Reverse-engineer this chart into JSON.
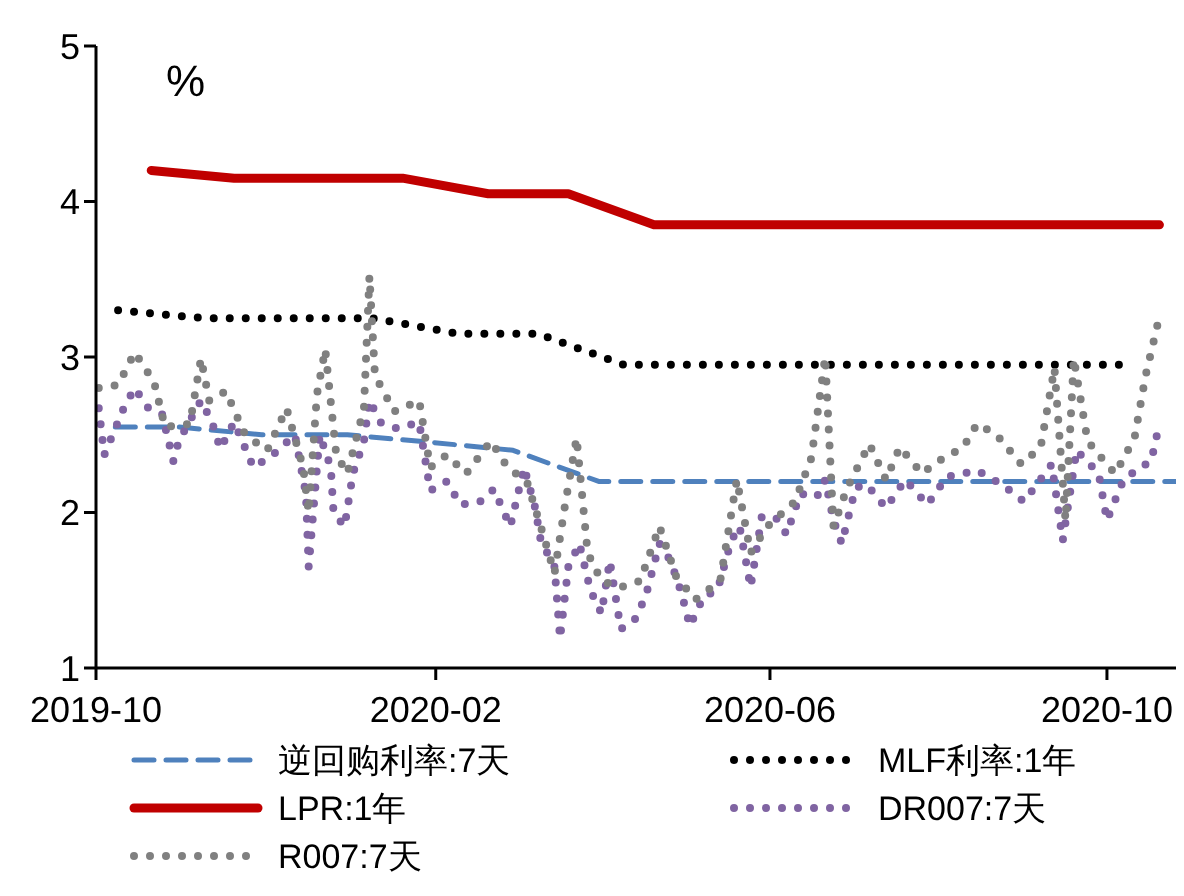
{
  "chart_data": {
    "type": "line",
    "ylabel": "%",
    "xlim": [
      "2019-10-01",
      "2020-10-26"
    ],
    "xticks": [
      "2019-10",
      "2020-02",
      "2020-06",
      "2020-10"
    ],
    "ylim": [
      1,
      5
    ],
    "yticks": [
      1,
      2,
      3,
      4,
      5
    ],
    "legend": "bottom",
    "marker": "none",
    "series": [
      {
        "name": "逆回购利率:7天",
        "color": "#4f81bd",
        "line_style": "dashed",
        "x": [
          "2019-10-08",
          "2019-10-31",
          "2019-11-30",
          "2019-12-31",
          "2020-01-31",
          "2020-02-29",
          "2020-03-31",
          "2020-04-30",
          "2020-05-31",
          "2020-06-30",
          "2020-07-31",
          "2020-08-31",
          "2020-09-30",
          "2020-10-26"
        ],
        "values": [
          2.55,
          2.55,
          2.5,
          2.5,
          2.45,
          2.4,
          2.2,
          2.2,
          2.2,
          2.2,
          2.2,
          2.2,
          2.2,
          2.2
        ]
      },
      {
        "name": "MLF利率:1年",
        "color": "#000000",
        "line_style": "dotted",
        "x": [
          "2019-10-09",
          "2019-11-09",
          "2019-12-09",
          "2020-01-09",
          "2020-02-09",
          "2020-03-09",
          "2020-04-09",
          "2020-05-09",
          "2020-06-09",
          "2020-07-09",
          "2020-08-09",
          "2020-09-09",
          "2020-10-09"
        ],
        "values": [
          3.3,
          3.25,
          3.25,
          3.25,
          3.15,
          3.15,
          2.95,
          2.95,
          2.95,
          2.95,
          2.95,
          2.95,
          2.95
        ]
      },
      {
        "name": "LPR:1年",
        "color": "#c00000",
        "line_style": "solid",
        "x": [
          "2019-10-21",
          "2019-11-20",
          "2019-12-20",
          "2020-01-20",
          "2020-02-20",
          "2020-03-20",
          "2020-04-20",
          "2020-05-20",
          "2020-06-20",
          "2020-07-20",
          "2020-08-20",
          "2020-09-20",
          "2020-10-20"
        ],
        "values": [
          4.2,
          4.15,
          4.15,
          4.15,
          4.05,
          4.05,
          3.85,
          3.85,
          3.85,
          3.85,
          3.85,
          3.85,
          3.85
        ]
      },
      {
        "name": "DR007:7天",
        "color": "#8064a2",
        "line_style": "dotted",
        "x": [
          "2019-10-02",
          "2019-10-04",
          "2019-10-11",
          "2019-10-15",
          "2019-10-20",
          "2019-10-25",
          "2019-10-29",
          "2019-10-31",
          "2019-11-08",
          "2019-11-12",
          "2019-11-15",
          "2019-11-20",
          "2019-11-27",
          "2019-12-04",
          "2019-12-12",
          "2019-12-16",
          "2019-12-17",
          "2019-12-21",
          "2019-12-25",
          "2019-12-26",
          "2019-12-30",
          "2020-01-02",
          "2020-01-06",
          "2020-01-08",
          "2020-01-12",
          "2020-01-18",
          "2020-01-26",
          "2020-01-30",
          "2020-02-05",
          "2020-02-10",
          "2020-02-17",
          "2020-02-22",
          "2020-02-28",
          "2020-03-04",
          "2020-03-08",
          "2020-03-10",
          "2020-03-15",
          "2020-03-17",
          "2020-03-20",
          "2020-03-24",
          "2020-03-28",
          "2020-04-01",
          "2020-04-04",
          "2020-04-08",
          "2020-04-13",
          "2020-04-17",
          "2020-04-22",
          "2020-04-26",
          "2020-04-30",
          "2020-05-03",
          "2020-05-08",
          "2020-05-13",
          "2020-05-18",
          "2020-05-21",
          "2020-05-25",
          "2020-05-29",
          "2020-06-03",
          "2020-06-07",
          "2020-06-12",
          "2020-06-18",
          "2020-06-21",
          "2020-06-24",
          "2020-06-27",
          "2020-07-02",
          "2020-07-06",
          "2020-07-13",
          "2020-07-20",
          "2020-07-28",
          "2020-08-04",
          "2020-08-15",
          "2020-08-24",
          "2020-09-01",
          "2020-09-11",
          "2020-09-15",
          "2020-09-20",
          "2020-09-28",
          "2020-10-01",
          "2020-10-07",
          "2020-10-13",
          "2020-10-17",
          "2020-10-20"
        ],
        "values": [
          2.67,
          2.37,
          2.67,
          2.8,
          2.67,
          2.63,
          2.33,
          2.46,
          2.72,
          2.58,
          2.41,
          2.58,
          2.29,
          2.37,
          2.5,
          2.12,
          1.65,
          2.5,
          2.29,
          2.0,
          1.91,
          2.25,
          2.46,
          2.72,
          2.58,
          2.54,
          2.58,
          2.14,
          2.2,
          2.05,
          2.07,
          2.15,
          1.91,
          2.29,
          2.03,
          1.82,
          1.65,
          1.19,
          1.65,
          1.8,
          1.5,
          1.35,
          1.69,
          1.25,
          1.31,
          1.46,
          1.8,
          1.69,
          1.48,
          1.27,
          1.46,
          1.5,
          1.82,
          1.91,
          1.52,
          1.97,
          1.97,
          1.86,
          2.12,
          2.1,
          2.21,
          1.95,
          1.8,
          2.16,
          2.18,
          2.03,
          2.21,
          2.05,
          2.23,
          2.27,
          2.18,
          2.07,
          2.31,
          1.82,
          2.4,
          2.25,
          1.95,
          2.21,
          2.29,
          2.33,
          2.57
        ]
      },
      {
        "name": "R007:7天",
        "color": "#808080",
        "line_style": "dotted",
        "x": [
          "2019-10-02",
          "2019-10-09",
          "2019-10-15",
          "2019-10-22",
          "2019-10-26",
          "2019-11-04",
          "2019-11-08",
          "2019-11-11",
          "2019-11-17",
          "2019-11-24",
          "2019-12-02",
          "2019-12-09",
          "2019-12-15",
          "2019-12-17",
          "2019-12-20",
          "2019-12-23",
          "2019-12-27",
          "2019-12-31",
          "2020-01-06",
          "2020-01-08",
          "2020-01-10",
          "2020-01-17",
          "2020-01-26",
          "2020-01-30",
          "2020-02-05",
          "2020-02-12",
          "2020-02-21",
          "2020-02-27",
          "2020-03-05",
          "2020-03-10",
          "2020-03-15",
          "2020-03-19",
          "2020-03-23",
          "2020-03-27",
          "2020-04-01",
          "2020-04-08",
          "2020-04-15",
          "2020-04-22",
          "2020-04-28",
          "2020-05-05",
          "2020-05-14",
          "2020-05-20",
          "2020-05-25",
          "2020-05-31",
          "2020-06-10",
          "2020-06-16",
          "2020-06-21",
          "2020-06-24",
          "2020-06-29",
          "2020-07-07",
          "2020-07-13",
          "2020-07-18",
          "2020-07-26",
          "2020-08-01",
          "2020-08-10",
          "2020-08-15",
          "2020-08-22",
          "2020-08-31",
          "2020-09-07",
          "2020-09-12",
          "2020-09-16",
          "2020-09-19",
          "2020-09-24",
          "2020-09-30",
          "2020-10-04",
          "2020-10-11",
          "2020-10-15",
          "2020-10-20"
        ],
        "values": [
          2.8,
          2.82,
          3.03,
          2.84,
          2.55,
          2.57,
          2.99,
          2.72,
          2.78,
          2.5,
          2.4,
          2.67,
          2.29,
          2.0,
          2.76,
          3.05,
          2.37,
          2.25,
          2.67,
          3.52,
          2.88,
          2.65,
          2.72,
          2.29,
          2.37,
          2.25,
          2.46,
          2.29,
          2.2,
          1.91,
          1.61,
          2.07,
          2.48,
          1.74,
          1.56,
          1.52,
          1.56,
          1.91,
          1.59,
          1.44,
          1.56,
          2.21,
          1.74,
          1.91,
          2.07,
          2.35,
          3.0,
          1.91,
          2.16,
          2.44,
          2.21,
          2.42,
          2.25,
          2.33,
          2.42,
          2.57,
          2.5,
          2.31,
          2.42,
          2.93,
          1.95,
          2.99,
          2.46,
          2.33,
          2.25,
          2.48,
          2.88,
          3.26
        ]
      }
    ]
  }
}
